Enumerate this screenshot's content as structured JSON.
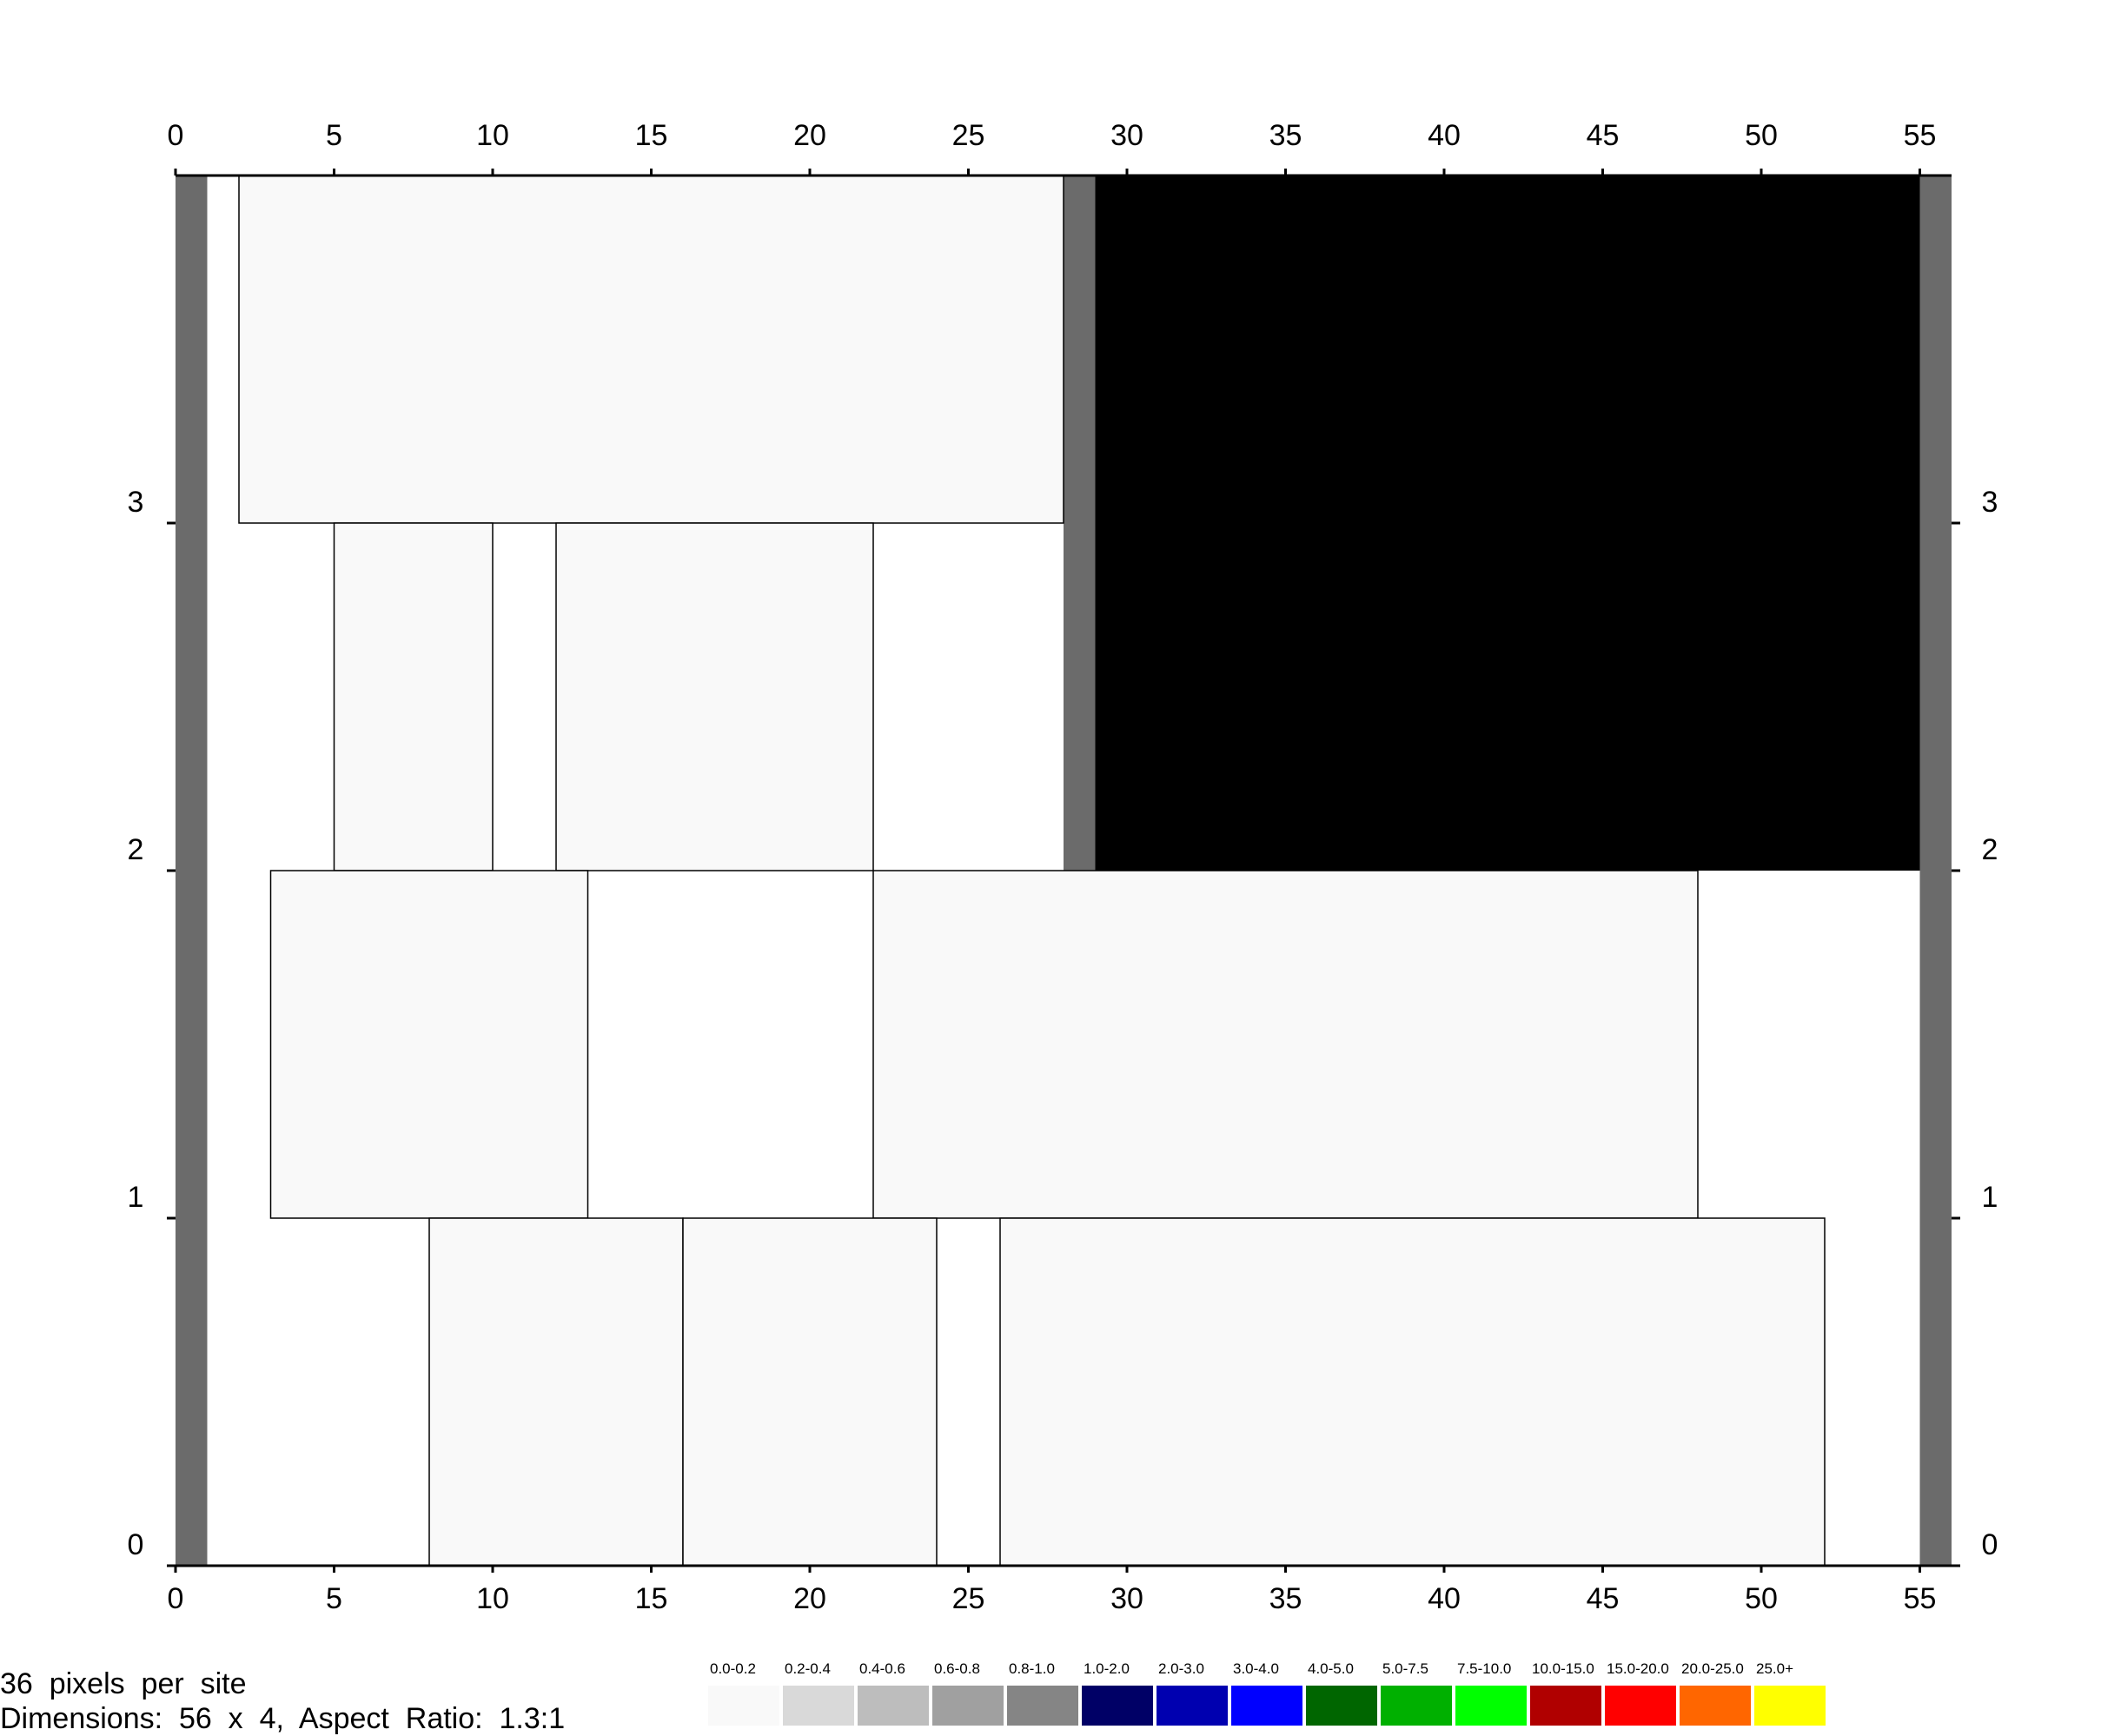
{
  "chart_data": {
    "type": "heatmap",
    "title": "",
    "xlabel": "",
    "ylabel": "",
    "xlim": [
      0,
      56
    ],
    "ylim": [
      0,
      4
    ],
    "x_ticks": [
      0,
      5,
      10,
      15,
      20,
      25,
      30,
      35,
      40,
      45,
      50,
      55
    ],
    "y_ticks": [
      0,
      1,
      2,
      3
    ],
    "x_axis_positions": [
      "top",
      "bottom"
    ],
    "y_axis_positions": [
      "left",
      "right"
    ],
    "grid": false,
    "blocks": [
      {
        "x0": 0,
        "x1": 1,
        "y0": 0,
        "y1": 4,
        "color": "#6b6b6b"
      },
      {
        "x0": 55,
        "x1": 56,
        "y0": 0,
        "y1": 4,
        "color": "#6b6b6b"
      },
      {
        "x0": 28,
        "x1": 29,
        "y0": 2,
        "y1": 4,
        "color": "#6b6b6b"
      },
      {
        "x0": 29,
        "x1": 55,
        "y0": 2,
        "y1": 4,
        "color": "#000000"
      },
      {
        "x0": 2,
        "x1": 28,
        "y0": 3,
        "y1": 4,
        "color": "#f9f9f9"
      },
      {
        "x0": 5,
        "x1": 10,
        "y0": 2,
        "y1": 3,
        "color": "#f9f9f9"
      },
      {
        "x0": 12,
        "x1": 22,
        "y0": 2,
        "y1": 3,
        "color": "#f9f9f9"
      },
      {
        "x0": 3,
        "x1": 13,
        "y0": 1,
        "y1": 2,
        "color": "#f9f9f9"
      },
      {
        "x0": 22,
        "x1": 48,
        "y0": 1,
        "y1": 2,
        "color": "#f9f9f9"
      },
      {
        "x0": 8,
        "x1": 16,
        "y0": 0,
        "y1": 1,
        "color": "#f9f9f9"
      },
      {
        "x0": 16,
        "x1": 24,
        "y0": 0,
        "y1": 1,
        "color": "#f9f9f9"
      },
      {
        "x0": 26,
        "x1": 52,
        "y0": 0,
        "y1": 1,
        "color": "#f9f9f9"
      }
    ],
    "legend": [
      {
        "label": "0.0-0.2",
        "color": "#f9f9f9"
      },
      {
        "label": "0.2-0.4",
        "color": "#d9d9d9"
      },
      {
        "label": "0.4-0.6",
        "color": "#bdbdbd"
      },
      {
        "label": "0.6-0.8",
        "color": "#a0a0a0"
      },
      {
        "label": "0.8-1.0",
        "color": "#858585"
      },
      {
        "label": "1.0-2.0",
        "color": "#000066"
      },
      {
        "label": "2.0-3.0",
        "color": "#0000b0"
      },
      {
        "label": "3.0-4.0",
        "color": "#0000ff"
      },
      {
        "label": "4.0-5.0",
        "color": "#006600"
      },
      {
        "label": "5.0-7.5",
        "color": "#00b000"
      },
      {
        "label": "7.5-10.0",
        "color": "#00ff00"
      },
      {
        "label": "10.0-15.0",
        "color": "#b00000"
      },
      {
        "label": "15.0-20.0",
        "color": "#ff0000"
      },
      {
        "label": "20.0-25.0",
        "color": "#ff6600"
      },
      {
        "label": "25.0+",
        "color": "#ffff00"
      }
    ]
  },
  "info": {
    "pixels_per_site": "36  pixels  per  site",
    "dimensions": "Dimensions:  56  x  4,  Aspect  Ratio:  1.3:1"
  }
}
